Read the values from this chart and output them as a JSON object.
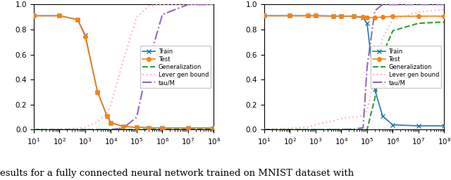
{
  "left": {
    "x": [
      10,
      100.0,
      500.0,
      1000.0,
      3000.0,
      7000.0,
      10000.0,
      30000.0,
      100000.0,
      300000.0,
      1000000.0,
      10000000.0,
      100000000.0
    ],
    "train": [
      0.91,
      0.91,
      0.88,
      0.755,
      0.3,
      0.11,
      0.055,
      0.025,
      0.018,
      0.015,
      0.013,
      0.013,
      0.013
    ],
    "test": [
      0.91,
      0.91,
      0.88,
      0.745,
      0.3,
      0.11,
      0.055,
      0.025,
      0.018,
      0.015,
      0.014,
      0.014,
      0.014
    ],
    "gen": [
      0.0,
      0.0,
      0.0,
      0.0,
      0.0,
      0.0,
      0.0,
      0.001,
      0.001,
      0.003,
      0.004,
      0.004,
      0.005
    ],
    "lever": [
      0.0,
      0.003,
      0.01,
      0.02,
      0.06,
      0.13,
      0.2,
      0.55,
      0.9,
      0.99,
      1.0,
      1.0,
      1.0
    ],
    "tau_m": [
      0.0,
      0.0,
      0.0,
      0.0,
      0.0,
      0.001,
      0.002,
      0.012,
      0.1,
      0.55,
      0.92,
      1.0,
      1.0
    ],
    "xlim": [
      10,
      100000000.0
    ],
    "ylim": [
      0.0,
      1.0
    ]
  },
  "right": {
    "x": [
      10,
      100.0,
      500.0,
      1000.0,
      5000.0,
      10000.0,
      30000.0,
      70000.0,
      100000.0,
      200000.0,
      400000.0,
      1000000.0,
      10000000.0,
      100000000.0
    ],
    "train": [
      0.91,
      0.91,
      0.91,
      0.91,
      0.908,
      0.908,
      0.907,
      0.895,
      0.848,
      0.32,
      0.108,
      0.038,
      0.03,
      0.03
    ],
    "test": [
      0.91,
      0.91,
      0.91,
      0.91,
      0.908,
      0.908,
      0.907,
      0.9,
      0.895,
      0.895,
      0.9,
      0.905,
      0.907,
      0.907
    ],
    "gen": [
      0.0,
      0.0,
      0.0,
      0.0,
      0.0,
      0.0,
      0.0,
      0.0,
      0.0,
      0.25,
      0.6,
      0.79,
      0.85,
      0.86
    ],
    "lever": [
      0.0,
      0.01,
      0.02,
      0.04,
      0.07,
      0.09,
      0.1,
      0.11,
      0.15,
      0.42,
      0.73,
      0.88,
      0.94,
      0.96
    ],
    "tau_m": [
      0.0,
      0.0,
      0.0,
      0.0,
      0.001,
      0.002,
      0.004,
      0.015,
      0.5,
      0.95,
      1.0,
      1.0,
      1.0,
      1.0
    ],
    "xlim": [
      10,
      100000000.0
    ],
    "ylim": [
      0.0,
      1.0
    ]
  },
  "colors": {
    "train": "#1f77b4",
    "test": "#ff7f0e",
    "gen": "#2ca02c",
    "lever": "#ffb6c1",
    "tau_m": "#9467bd"
  },
  "legend_labels": [
    "Train",
    "Test",
    "Generalization",
    "Lever gen bound",
    "tau/M"
  ],
  "bottom_text": "esults for a fully connected neural network trained on MNIST dataset with"
}
